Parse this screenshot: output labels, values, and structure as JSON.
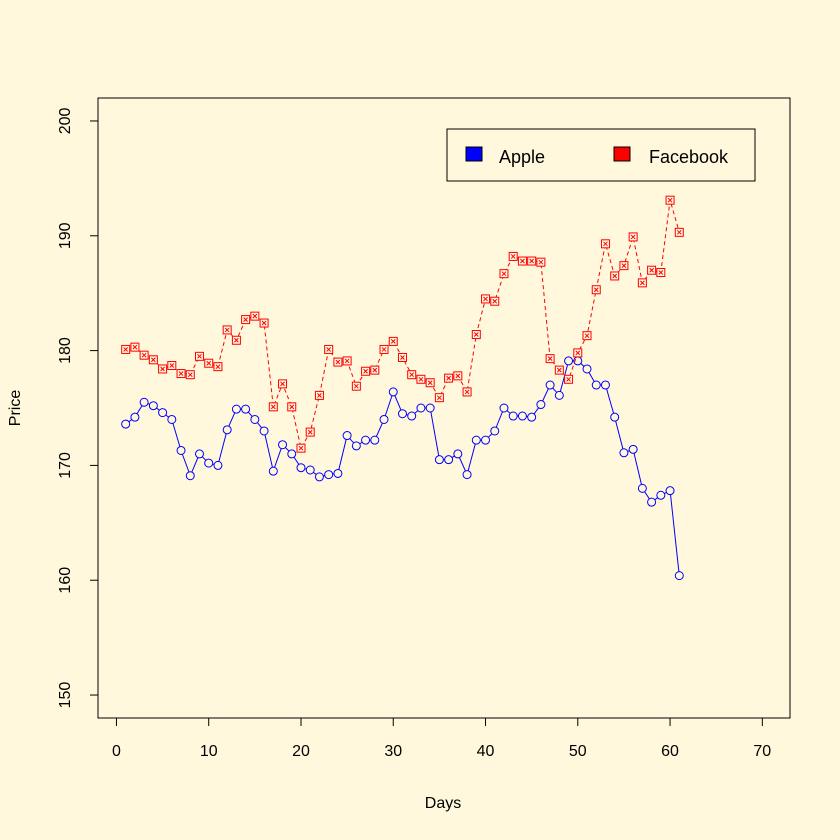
{
  "chart_data": {
    "type": "line",
    "title": "",
    "xlabel": "Days",
    "ylabel": "Price",
    "xlim": [
      -2,
      73
    ],
    "ylim": [
      148,
      202
    ],
    "xticks": [
      0,
      10,
      20,
      30,
      40,
      50,
      60,
      70
    ],
    "yticks": [
      150,
      160,
      170,
      180,
      190,
      200
    ],
    "grid": false,
    "legend_position": "top-right",
    "series": [
      {
        "name": "Apple",
        "color": "#0000ff",
        "line_style": "solid",
        "marker": "circle",
        "x": [
          1,
          2,
          3,
          4,
          5,
          6,
          7,
          8,
          9,
          10,
          11,
          12,
          13,
          14,
          15,
          16,
          17,
          18,
          19,
          20,
          21,
          22,
          23,
          24,
          25,
          26,
          27,
          28,
          29,
          30,
          31,
          32,
          33,
          34,
          35,
          36,
          37,
          38,
          39,
          40,
          41,
          42,
          43,
          44,
          45,
          46,
          47,
          48,
          49,
          50,
          51,
          52,
          53,
          54,
          55,
          56,
          57,
          58,
          59,
          60,
          61
        ],
        "values": [
          173.6,
          174.2,
          175.5,
          175.2,
          174.6,
          174.0,
          171.3,
          169.1,
          171.0,
          170.2,
          170.0,
          173.1,
          174.9,
          174.9,
          174.0,
          173.0,
          169.5,
          171.8,
          171.0,
          169.8,
          169.6,
          169.0,
          169.2,
          169.3,
          172.6,
          171.7,
          172.2,
          172.2,
          174.0,
          176.4,
          174.5,
          174.3,
          175.0,
          175.0,
          170.5,
          170.5,
          171.0,
          169.2,
          172.2,
          172.2,
          173.0,
          175.0,
          174.3,
          174.3,
          174.2,
          175.3,
          177.0,
          176.1,
          179.1,
          179.1,
          178.4,
          177.0,
          177.0,
          174.2,
          171.1,
          171.4,
          168.0,
          166.8,
          167.4,
          167.8,
          160.4
        ]
      },
      {
        "name": "Facebook",
        "color": "#ff0000",
        "line_style": "dashed",
        "marker": "square-x",
        "x": [
          1,
          2,
          3,
          4,
          5,
          6,
          7,
          8,
          9,
          10,
          11,
          12,
          13,
          14,
          15,
          16,
          17,
          18,
          19,
          20,
          21,
          22,
          23,
          24,
          25,
          26,
          27,
          28,
          29,
          30,
          31,
          32,
          33,
          34,
          35,
          36,
          37,
          38,
          39,
          40,
          41,
          42,
          43,
          44,
          45,
          46,
          47,
          48,
          49,
          50,
          51,
          52,
          53,
          54,
          55,
          56,
          57,
          58,
          59,
          60,
          61
        ],
        "values": [
          180.1,
          180.3,
          179.6,
          179.2,
          178.4,
          178.7,
          178.0,
          177.9,
          179.5,
          178.9,
          178.6,
          181.8,
          180.9,
          182.7,
          183.0,
          182.4,
          175.1,
          177.1,
          175.1,
          171.5,
          172.9,
          176.1,
          180.1,
          179.0,
          179.1,
          176.9,
          178.2,
          178.3,
          180.1,
          180.8,
          179.4,
          177.9,
          177.5,
          177.2,
          175.9,
          177.6,
          177.8,
          176.4,
          181.4,
          184.5,
          184.3,
          186.7,
          188.2,
          187.8,
          187.8,
          187.7,
          179.3,
          178.3,
          177.5,
          179.8,
          181.3,
          185.3,
          189.3,
          186.5,
          187.4,
          189.9,
          185.9,
          187.0,
          186.8,
          193.1,
          190.3
        ]
      }
    ]
  }
}
